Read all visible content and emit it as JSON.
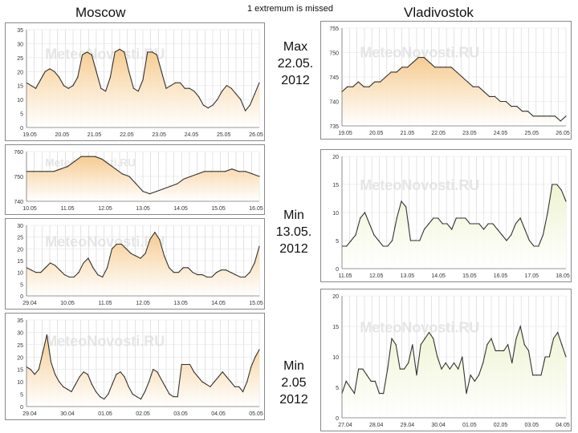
{
  "header": {
    "left_city": "Moscow",
    "note": "1 extremum is missed",
    "right_city": "Vladivostok"
  },
  "labels": {
    "max": [
      "Max",
      "22.05.",
      "2012"
    ],
    "min1": [
      "Min",
      "13.05.",
      "2012"
    ],
    "min2": [
      "Min",
      "2.05",
      "2012"
    ]
  },
  "watermark": "MeteoNovosti.RU",
  "colors": {
    "line": "#333333",
    "fill_warm": "#f6c98a",
    "fill_cool": "#eef3cf",
    "grid": "#d8d8d8"
  },
  "chart_data": [
    {
      "id": "moscow-temp-may19",
      "type": "area",
      "title": "Moscow",
      "y_ticks": [
        "0",
        "5",
        "10",
        "15",
        "20",
        "25",
        "30",
        "35"
      ],
      "ylim": [
        0,
        35
      ],
      "x_ticks": [
        "19.05",
        "20.05",
        "21.05",
        "22.05",
        "23.05",
        "24.05",
        "25.05",
        "26.05"
      ],
      "values": [
        16,
        15,
        14,
        17,
        20,
        21,
        20,
        18,
        15,
        14,
        15,
        18,
        26,
        27,
        26,
        20,
        14,
        13,
        18,
        27,
        28,
        27,
        20,
        14,
        13,
        17,
        27,
        27,
        26,
        20,
        14,
        15,
        16,
        16,
        14,
        14,
        13,
        11,
        8,
        7,
        8,
        10,
        13,
        15,
        14,
        12,
        10,
        6,
        8,
        12,
        16
      ],
      "fill": "warm"
    },
    {
      "id": "vladivostok-pressure-may19",
      "type": "area",
      "title": "Vladivostok",
      "y_ticks": [
        "735",
        "740",
        "745",
        "750",
        "755"
      ],
      "ylim": [
        735,
        755
      ],
      "x_ticks": [
        "19.05",
        "20.05",
        "21.05",
        "22.05",
        "23.05",
        "24.05",
        "25.05",
        "26.05"
      ],
      "values": [
        742,
        743,
        743,
        744,
        743,
        743,
        744,
        744,
        745,
        746,
        746,
        747,
        747,
        748,
        749,
        749,
        748,
        747,
        747,
        747,
        747,
        746,
        745,
        744,
        743,
        743,
        742,
        741,
        741,
        740,
        740,
        739,
        739,
        738,
        738,
        737,
        737,
        737,
        737,
        737,
        736,
        737
      ],
      "fill": "warm"
    },
    {
      "id": "moscow-pressure-may10",
      "type": "area",
      "title": "",
      "y_ticks": [
        "740",
        "750",
        "760"
      ],
      "ylim": [
        740,
        760
      ],
      "x_ticks": [
        "10.05",
        "11.05",
        "12.05",
        "13.05",
        "14.05",
        "15.05",
        "16.05"
      ],
      "values": [
        752,
        752,
        752,
        752,
        752,
        753,
        754,
        756,
        758,
        758,
        758,
        757,
        755,
        753,
        751,
        750,
        747,
        744,
        743,
        744,
        745,
        746,
        747,
        749,
        750,
        751,
        752,
        752,
        752,
        752,
        753,
        752,
        752,
        751,
        750
      ],
      "fill": "warm"
    },
    {
      "id": "vladivostok-temp-may11",
      "type": "area",
      "title": "",
      "y_ticks": [
        "0",
        "5",
        "10",
        "15",
        "20"
      ],
      "ylim": [
        0,
        20
      ],
      "x_ticks": [
        "11.05",
        "12.05",
        "13.05",
        "14.05",
        "15.05",
        "16.05",
        "17.05",
        "18.05"
      ],
      "values": [
        4,
        4,
        5,
        6,
        9,
        10,
        8,
        6,
        5,
        4,
        4,
        5,
        9,
        12,
        11,
        5,
        5,
        5,
        7,
        8,
        9,
        9,
        8,
        8,
        7,
        9,
        9,
        9,
        8,
        8,
        8,
        7,
        8,
        8,
        7,
        6,
        5,
        6,
        8,
        9,
        7,
        5,
        4,
        4,
        6,
        10,
        15,
        15,
        14,
        12
      ],
      "fill": "cool"
    },
    {
      "id": "moscow-temp-apr29",
      "type": "area",
      "title": "",
      "y_ticks": [
        "0",
        "5",
        "10",
        "15",
        "20",
        "25",
        "30"
      ],
      "ylim": [
        0,
        30
      ],
      "x_ticks": [
        "29.04",
        "10.05",
        "11.05",
        "12.05",
        "13.05",
        "14.05",
        "15.05"
      ],
      "values": [
        12,
        11,
        10,
        10,
        12,
        14,
        13,
        11,
        9,
        8,
        8,
        10,
        14,
        16,
        12,
        9,
        8,
        12,
        20,
        22,
        22,
        20,
        18,
        17,
        16,
        18,
        24,
        27,
        24,
        17,
        12,
        10,
        10,
        12,
        12,
        10,
        9,
        9,
        8,
        8,
        10,
        11,
        11,
        10,
        9,
        8,
        8,
        10,
        14,
        21
      ],
      "fill": "warm"
    },
    {
      "id": "vladivostok-temp-apr27",
      "type": "area",
      "title": "",
      "y_ticks": [
        "0",
        "5",
        "10",
        "15",
        "20"
      ],
      "ylim": [
        0,
        20
      ],
      "x_ticks": [
        "27.04",
        "28.04",
        "29.04",
        "30.04",
        "01.05",
        "02.05",
        "03.05",
        "04.05"
      ],
      "values": [
        4,
        6,
        5,
        4,
        8,
        8,
        7,
        6,
        6,
        4,
        4,
        8,
        13,
        12,
        8,
        8,
        9,
        12,
        7,
        12,
        13,
        14,
        13,
        10,
        8,
        9,
        8,
        9,
        8,
        10,
        4,
        7,
        6,
        7,
        9,
        12,
        13,
        11,
        11,
        11,
        12,
        9,
        13,
        15,
        12,
        11,
        7,
        7,
        7,
        10,
        10,
        13,
        14,
        12,
        10
      ],
      "fill": "cool"
    },
    {
      "id": "moscow-temp-apr29-b",
      "type": "area",
      "title": "",
      "y_ticks": [
        "0",
        "5",
        "10",
        "15",
        "20",
        "25",
        "30",
        "35"
      ],
      "ylim": [
        0,
        35
      ],
      "x_ticks": [
        "29.04",
        "30.04",
        "01.05",
        "02.05",
        "03.05",
        "04.05",
        "05.05"
      ],
      "values": [
        16,
        15,
        13,
        15,
        22,
        29,
        18,
        13,
        10,
        8,
        7,
        6,
        9,
        12,
        14,
        13,
        9,
        6,
        4,
        3,
        5,
        9,
        13,
        14,
        12,
        8,
        5,
        4,
        3,
        6,
        10,
        15,
        14,
        11,
        8,
        5,
        4,
        4,
        17,
        17,
        17,
        14,
        12,
        10,
        9,
        8,
        10,
        12,
        14,
        12,
        10,
        8,
        8,
        6,
        10,
        16,
        20,
        23
      ],
      "fill": "warm"
    }
  ]
}
